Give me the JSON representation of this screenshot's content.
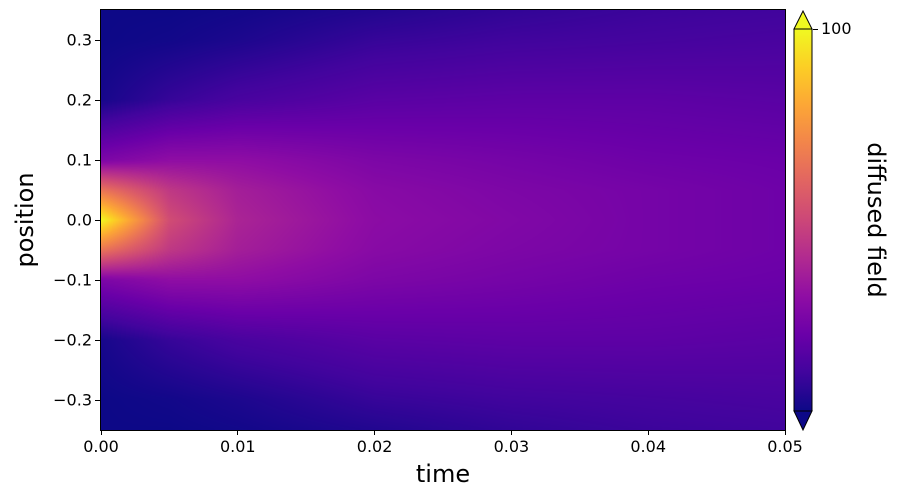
{
  "chart_data": {
    "type": "heatmap",
    "title": "",
    "xlabel": "time",
    "ylabel": "position",
    "xlim": [
      0,
      0.05
    ],
    "ylim": [
      -0.35,
      0.35
    ],
    "xticks": [
      "0.00",
      "0.01",
      "0.02",
      "0.03",
      "0.04",
      "0.05"
    ],
    "xtick_values": [
      0,
      0.01,
      0.02,
      0.03,
      0.04,
      0.05
    ],
    "yticks": [
      "−0.3",
      "−0.2",
      "−0.1",
      "0.0",
      "0.1",
      "0.2",
      "0.3"
    ],
    "ytick_values": [
      -0.3,
      -0.2,
      -0.1,
      0,
      0.1,
      0.2,
      0.3
    ],
    "colormap": "plasma",
    "colorbar": {
      "label": "diffused field",
      "ticks": [
        "100"
      ],
      "tick_values": [
        100
      ],
      "vmin": 0,
      "vmax": 100,
      "extend": "both"
    },
    "grid": false,
    "times": [
      0,
      0.005,
      0.01,
      0.02,
      0.03,
      0.04,
      0.05
    ],
    "positions": [
      -0.35,
      -0.3,
      -0.2,
      -0.1,
      -0.05,
      0,
      0.05,
      0.1,
      0.2,
      0.3,
      0.35
    ],
    "values": [
      [
        0,
        0,
        2,
        25,
        65,
        100,
        65,
        25,
        2,
        0,
        0
      ],
      [
        0,
        1,
        8,
        30,
        45,
        52,
        45,
        30,
        8,
        1,
        0
      ],
      [
        1,
        3,
        12,
        30,
        36,
        38,
        36,
        30,
        12,
        3,
        1
      ],
      [
        4,
        8,
        16,
        25,
        28,
        29,
        28,
        25,
        16,
        8,
        4
      ],
      [
        7,
        10,
        17,
        23,
        25,
        26,
        25,
        23,
        17,
        10,
        7
      ],
      [
        9,
        11,
        17,
        21,
        23,
        23,
        23,
        21,
        17,
        11,
        9
      ],
      [
        10,
        12,
        16,
        20,
        21,
        21,
        21,
        20,
        16,
        12,
        10
      ]
    ]
  }
}
